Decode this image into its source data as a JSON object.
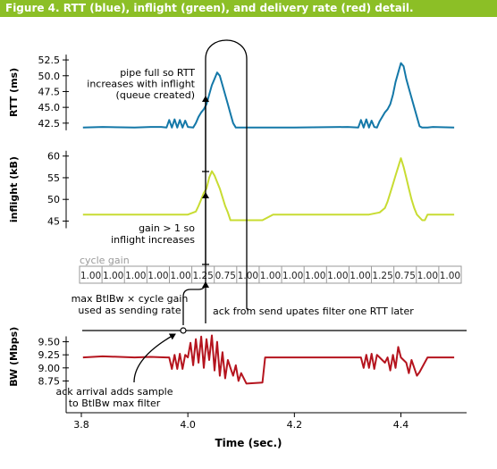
{
  "banner": {
    "title": "Figure 4. RTT (blue), inflight (green), and delivery rate (red) detail."
  },
  "colors": {
    "banner": "#8cbf26",
    "rtt": "#1478a8",
    "inflight": "#c8dc32",
    "bw": "#b5141e",
    "annotation": "#000000",
    "axis": "#000000",
    "gain_box": "#9a9a9a"
  },
  "chart_data": {
    "type": "line",
    "title": "Figure 4. RTT (blue), inflight (green), and delivery rate (red) detail.",
    "xlabel": "Time (sec.)",
    "xlim": [
      3.8,
      4.52
    ],
    "xticks": [
      3.8,
      4.0,
      4.2,
      4.4
    ],
    "xtick_labels": [
      "3.8",
      "4.0",
      "4.2",
      "4.4"
    ],
    "grid": false,
    "panels": [
      {
        "name": "rtt",
        "series_name": "RTT",
        "ylabel": "RTT (ms)",
        "color": "#1478a8",
        "ylim": [
          40.5,
          53.5
        ],
        "yticks": [
          42.5,
          45.0,
          47.5,
          50.0,
          52.5
        ],
        "ytick_labels": [
          "42.5",
          "45.0",
          "47.5",
          "50.0",
          "52.5"
        ],
        "x": [
          3.803,
          3.84,
          3.9,
          3.93,
          3.95,
          3.96,
          3.965,
          3.97,
          3.975,
          3.98,
          3.985,
          3.99,
          3.995,
          4.0,
          4.01,
          4.015,
          4.02,
          4.025,
          4.03,
          4.035,
          4.04,
          4.045,
          4.05,
          4.055,
          4.06,
          4.065,
          4.07,
          4.075,
          4.08,
          4.085,
          4.09,
          4.2,
          4.3,
          4.32,
          4.325,
          4.33,
          4.335,
          4.34,
          4.345,
          4.35,
          4.355,
          4.36,
          4.37,
          4.375,
          4.38,
          4.385,
          4.39,
          4.395,
          4.4,
          4.405,
          4.41,
          4.415,
          4.42,
          4.425,
          4.43,
          4.435,
          4.44,
          4.445,
          4.45,
          4.46,
          4.5
        ],
        "y": [
          41.8,
          41.9,
          41.8,
          41.9,
          41.9,
          41.8,
          43.0,
          41.8,
          43.1,
          41.8,
          43.0,
          41.8,
          42.9,
          41.9,
          41.8,
          42.5,
          43.5,
          44.2,
          44.7,
          45.5,
          47.0,
          48.5,
          49.5,
          50.5,
          50.0,
          48.5,
          47.0,
          45.5,
          44.0,
          42.5,
          41.8,
          41.8,
          41.9,
          41.8,
          43.0,
          41.8,
          43.1,
          41.8,
          42.9,
          41.9,
          41.8,
          42.8,
          44.2,
          44.7,
          45.5,
          47.0,
          49.0,
          50.5,
          52.0,
          51.5,
          49.5,
          48.0,
          46.5,
          45.0,
          43.5,
          42.0,
          41.8,
          41.8,
          41.8,
          41.9,
          41.8
        ]
      },
      {
        "name": "inflight",
        "series_name": "inflight",
        "ylabel": "inflight (kB)",
        "color": "#c8dc32",
        "ylim": [
          42,
          62
        ],
        "yticks": [
          45,
          50,
          55,
          60
        ],
        "ytick_labels": [
          "45",
          "50",
          "55",
          "60"
        ],
        "x": [
          3.803,
          3.97,
          4.0,
          4.015,
          4.02,
          4.025,
          4.03,
          4.035,
          4.04,
          4.045,
          4.05,
          4.055,
          4.06,
          4.065,
          4.07,
          4.075,
          4.08,
          4.09,
          4.14,
          4.16,
          4.3,
          4.34,
          4.36,
          4.37,
          4.375,
          4.38,
          4.385,
          4.39,
          4.395,
          4.4,
          4.405,
          4.41,
          4.415,
          4.42,
          4.425,
          4.43,
          4.44,
          4.445,
          4.45,
          4.455,
          4.5
        ],
        "y": [
          46.5,
          46.5,
          46.5,
          47.2,
          48.5,
          50.0,
          51.5,
          52.5,
          55.0,
          56.5,
          55.5,
          54.0,
          52.5,
          50.5,
          48.5,
          47.0,
          45.2,
          45.2,
          45.2,
          46.5,
          46.5,
          46.5,
          47.0,
          48.0,
          49.5,
          51.5,
          53.5,
          55.5,
          57.5,
          59.5,
          57.5,
          55.0,
          52.5,
          50.0,
          48.0,
          46.5,
          45.2,
          45.2,
          46.5,
          46.5,
          46.5
        ]
      },
      {
        "name": "bw",
        "series_name": "BW",
        "ylabel": "BW (Mbps)",
        "color": "#b5141e",
        "ylim": [
          8.45,
          9.8
        ],
        "yticks": [
          8.75,
          9.0,
          9.25,
          9.5
        ],
        "ytick_labels": [
          "8.75",
          "9.00",
          "9.25",
          "9.50"
        ],
        "x": [
          3.803,
          3.84,
          3.9,
          3.93,
          3.96,
          3.965,
          3.97,
          3.975,
          3.98,
          3.985,
          3.99,
          3.995,
          4.0,
          4.005,
          4.01,
          4.015,
          4.02,
          4.025,
          4.03,
          4.035,
          4.04,
          4.045,
          4.05,
          4.055,
          4.06,
          4.065,
          4.07,
          4.075,
          4.08,
          4.085,
          4.09,
          4.095,
          4.1,
          4.11,
          4.14,
          4.145,
          4.2,
          4.3,
          4.32,
          4.325,
          4.33,
          4.335,
          4.34,
          4.345,
          4.35,
          4.355,
          4.36,
          4.37,
          4.375,
          4.38,
          4.385,
          4.39,
          4.395,
          4.4,
          4.41,
          4.415,
          4.42,
          4.43,
          4.435,
          4.45,
          4.5
        ],
        "y": [
          9.2,
          9.22,
          9.2,
          9.21,
          9.2,
          9.2,
          8.98,
          9.25,
          8.98,
          9.27,
          8.98,
          9.25,
          9.2,
          9.48,
          9.05,
          9.55,
          9.1,
          9.6,
          9.0,
          9.55,
          9.15,
          9.62,
          8.95,
          9.5,
          8.85,
          9.3,
          8.8,
          9.15,
          9.0,
          8.85,
          9.05,
          8.75,
          8.9,
          8.7,
          8.72,
          9.2,
          9.2,
          9.2,
          9.2,
          9.2,
          9.0,
          9.25,
          9.0,
          9.27,
          8.98,
          9.25,
          9.2,
          9.1,
          9.2,
          8.95,
          9.25,
          9.0,
          9.4,
          9.2,
          9.1,
          8.9,
          9.15,
          8.85,
          8.92,
          9.2,
          9.2
        ]
      }
    ],
    "cycle_gain": {
      "label": "cycle gain",
      "values": [
        "1.00",
        "1.00",
        "1.00",
        "1.00",
        "1.00",
        "1.25",
        "0.75",
        "1.00",
        "1.00",
        "1.00",
        "1.00",
        "1.00",
        "1.00",
        "1.25",
        "0.75",
        "1.00",
        "1.00"
      ]
    },
    "annotations": [
      {
        "id": "pipe-full",
        "lines": [
          "pipe full so RTT",
          "increases with inflight",
          "(queue created)"
        ]
      },
      {
        "id": "gain",
        "lines": [
          "gain > 1 so",
          "inflight increases"
        ]
      },
      {
        "id": "max-btlbw",
        "lines": [
          "max BtlBw × cycle gain",
          "used as sending rate"
        ]
      },
      {
        "id": "ack-send",
        "lines": [
          "ack from send upates filter one RTT later"
        ]
      },
      {
        "id": "ack-arrival",
        "lines": [
          "ack arrival adds sample",
          "to BtlBw max filter"
        ]
      }
    ]
  }
}
